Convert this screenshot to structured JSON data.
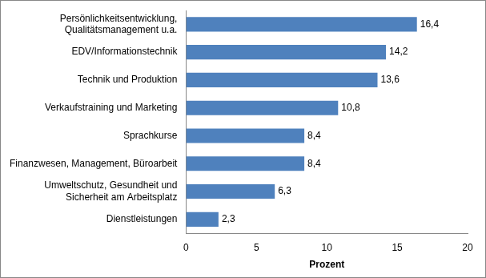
{
  "chart_data": {
    "type": "bar",
    "orientation": "horizontal",
    "categories": [
      "Persönlichkeitsentwicklung,\nQualitätsmanagement u.a.",
      "EDV/Informationstechnik",
      "Technik und Produktion",
      "Verkaufstraining und Marketing",
      "Sprachkurse",
      "Finanzwesen, Management, Büroarbeit",
      "Umweltschutz, Gesundheit und\nSicherheit am Arbeitsplatz",
      "Dienstleistungen"
    ],
    "values": [
      16.4,
      14.2,
      13.6,
      10.8,
      8.4,
      8.4,
      6.3,
      2.3
    ],
    "value_labels": [
      "16,4",
      "14,2",
      "13,6",
      "10,8",
      "8,4",
      "8,4",
      "6,3",
      "2,3"
    ],
    "data_labels": true,
    "color": "#4f81bd",
    "x_label": "Prozent",
    "xlim": [
      0,
      20
    ],
    "xticks": [
      0,
      5,
      10,
      15,
      20
    ],
    "grid": false
  }
}
